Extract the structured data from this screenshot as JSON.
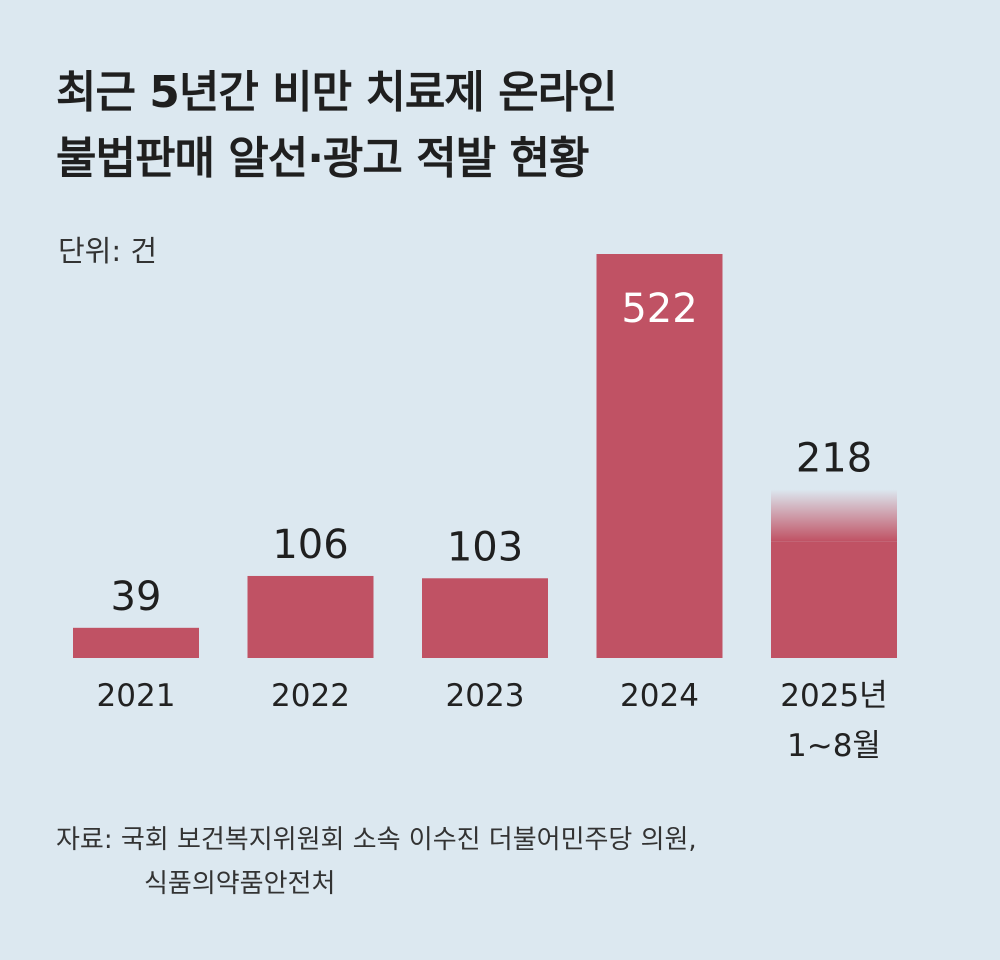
{
  "title_lines": [
    "최근 5년간 비만 치료제 온라인",
    "불법판매 알선·광고 적발 현황"
  ],
  "unit_label": "단위: 건",
  "source_lines": [
    "자료: 국회 보건복지위원회 소속 이수진 더불어민주당 의원,",
    "식품의약품안전처"
  ],
  "colors": {
    "bar": "#c05264",
    "background": "#dce8f0",
    "label_inside": "#ffffff"
  },
  "chart_data": {
    "type": "bar",
    "title": "최근 5년간 비만 치료제 온라인 불법판매 알선·광고 적발 현황",
    "ylabel": "",
    "xlabel": "",
    "unit": "건",
    "categories": [
      "2021",
      "2022",
      "2023",
      "2024",
      "2025년\n1~8월"
    ],
    "values": [
      39,
      106,
      103,
      522,
      218
    ],
    "ylim": [
      0,
      522
    ],
    "grid": false,
    "legend": "none"
  }
}
